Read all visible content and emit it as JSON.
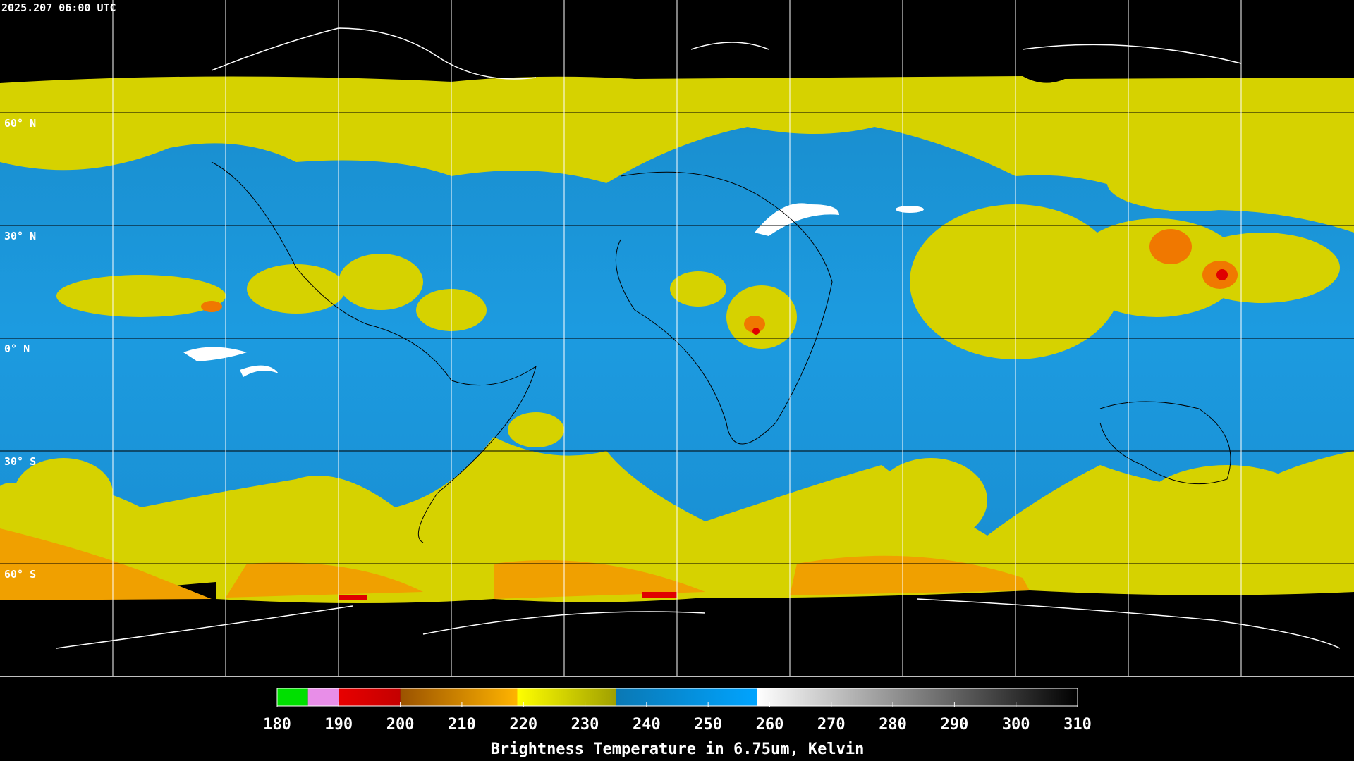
{
  "timestamp": "2025.207 06:00 UTC",
  "lat_labels": [
    "60° N",
    "30° N",
    "0° N",
    "30° S",
    "60° S"
  ],
  "colorbar": {
    "label": "Brightness Temperature in 6.75um, Kelvin",
    "lim": [
      180,
      310
    ],
    "ticks": [
      180,
      190,
      200,
      210,
      220,
      230,
      240,
      250,
      260,
      270,
      280,
      290,
      300,
      310
    ],
    "segments": [
      {
        "from": 180,
        "to": 185,
        "colors": [
          "#00e000",
          "#00e000"
        ]
      },
      {
        "from": 185,
        "to": 190,
        "colors": [
          "#e88ee8",
          "#e88ee8"
        ]
      },
      {
        "from": 190,
        "to": 200,
        "colors": [
          "#e80000",
          "#c40000"
        ]
      },
      {
        "from": 200,
        "to": 219,
        "colors": [
          "#9a5200",
          "#ffb400"
        ]
      },
      {
        "from": 219,
        "to": 235,
        "colors": [
          "#ffff00",
          "#a0a000"
        ]
      },
      {
        "from": 235,
        "to": 258,
        "colors": [
          "#0a78b4",
          "#00a4ff"
        ]
      },
      {
        "from": 258,
        "to": 310,
        "colors": [
          "#ffffff",
          "#000000"
        ]
      }
    ]
  }
}
